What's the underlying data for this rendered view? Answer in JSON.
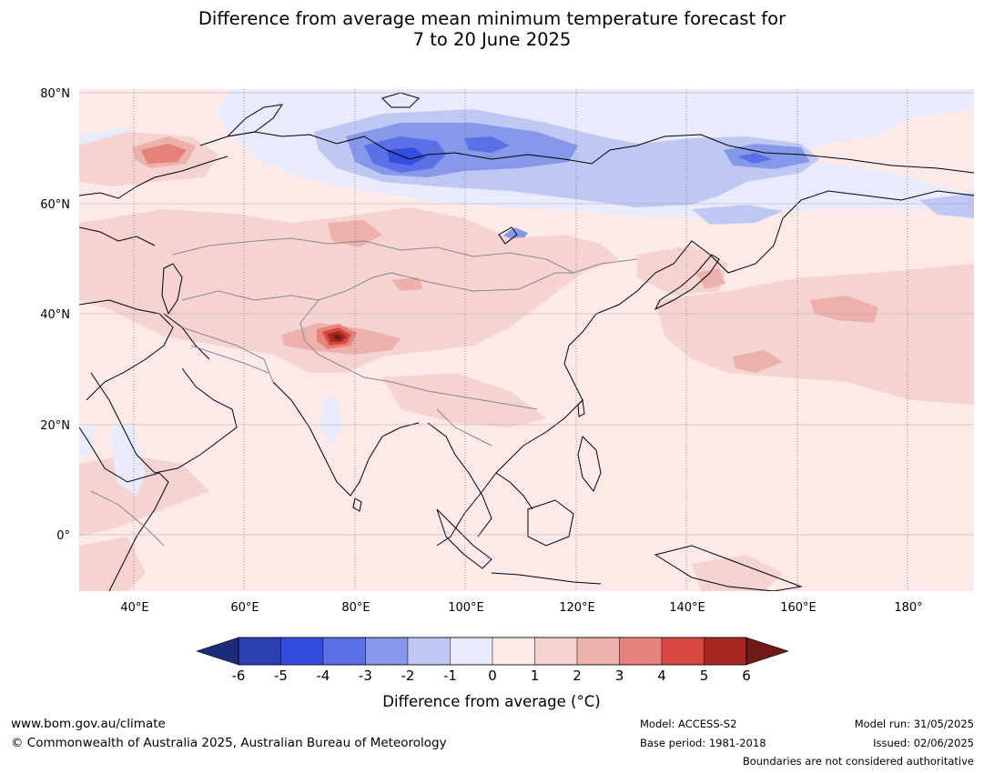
{
  "title": {
    "line1": "Difference from average mean minimum temperature forecast for",
    "line2": "7 to 20 June 2025"
  },
  "map": {
    "lat_labels": [
      "80°N",
      "60°N",
      "40°N",
      "20°N",
      "0°"
    ],
    "lon_labels": [
      "40°E",
      "60°E",
      "80°E",
      "100°E",
      "120°E",
      "140°E",
      "160°E",
      "180°"
    ],
    "ocean_color": "#fdeae8"
  },
  "colorbar": {
    "ticks": [
      "-6",
      "-5",
      "-4",
      "-3",
      "-2",
      "-1",
      "0",
      "1",
      "2",
      "3",
      "4",
      "5",
      "6"
    ],
    "colors": [
      "#1c2c7a",
      "#2b3fb3",
      "#324ee0",
      "#5b6fe6",
      "#8698ea",
      "#bfc8f3",
      "#e8ebfc",
      "#fde9e7",
      "#f5d3d1",
      "#eeb0ab",
      "#e6817b",
      "#d94840",
      "#a8271f",
      "#6e1a16"
    ],
    "label": "Difference from average (°C)"
  },
  "footer": {
    "website": "www.bom.gov.au/climate",
    "copyright": "© Commonwealth of Australia 2025, Australian Bureau of Meteorology",
    "model": "Model: ACCESS-S2",
    "base_period": "Base period: 1981-2018",
    "model_run": "Model run: 31/05/2025",
    "issued": "Issued: 02/06/2025",
    "disclaimer": "Boundaries are not considered authoritative"
  }
}
